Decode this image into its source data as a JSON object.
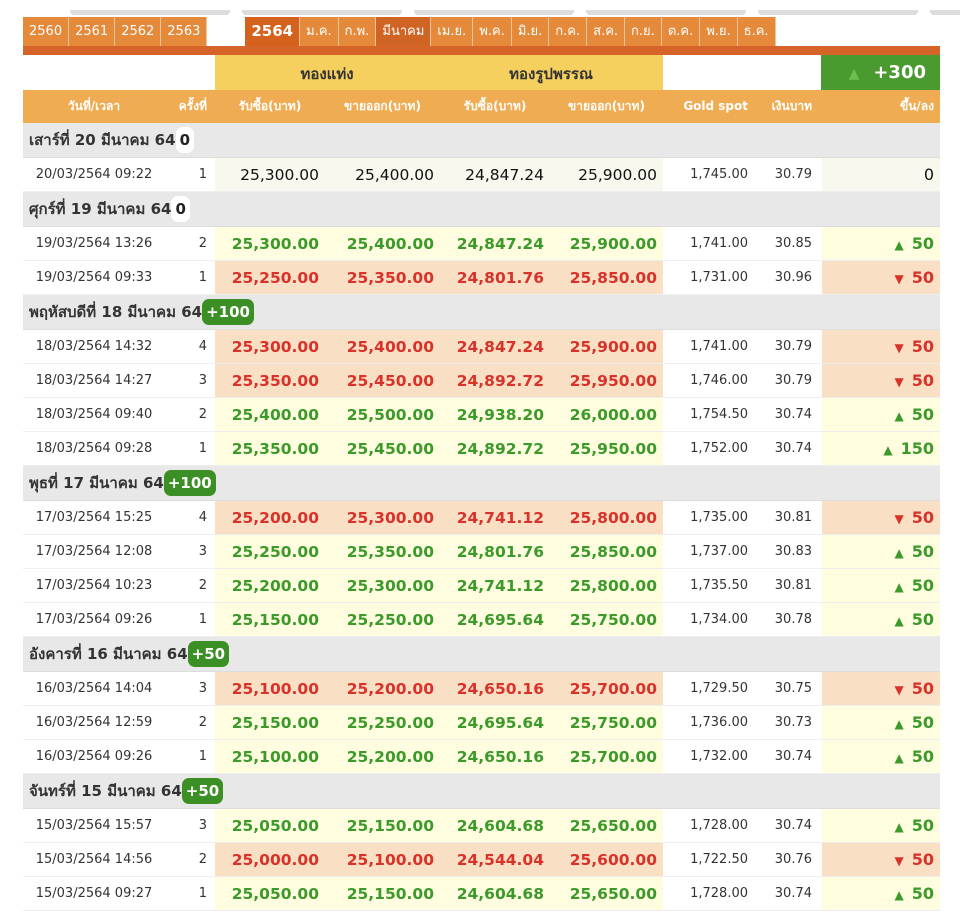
{
  "years": [
    "2560",
    "2561",
    "2562",
    "2563"
  ],
  "active_year": "2564",
  "months": [
    "ม.ค.",
    "ก.พ.",
    "มีนาคม",
    "เม.ย.",
    "พ.ค.",
    "มิ.ย.",
    "ก.ค.",
    "ส.ค.",
    "ก.ย.",
    "ต.ค.",
    "พ.ย.",
    "ธ.ค."
  ],
  "active_month_index": 2,
  "group_headers": {
    "bar": "ทองแท่ง",
    "ornament": "ทองรูปพรรณ",
    "total_change": "+300"
  },
  "columns": [
    "วันที่/เวลา",
    "ครั้งที่",
    "รับซื้อ(บาท)",
    "ขายออก(บาท)",
    "รับซื้อ(บาท)",
    "ขายออก(บาท)",
    "Gold spot",
    "เงินบาท",
    "ขึ้น/ลง"
  ],
  "colors": {
    "up": "#3c9a2a",
    "down": "#d8322a",
    "accent": "#e58a3a"
  },
  "days": [
    {
      "label": "เสาร์ที่ 20 มีนาคม 64",
      "change": "0",
      "rows": [
        {
          "time": "20/03/2564 09:22",
          "n": "1",
          "bb": "25,300.00",
          "bs": "25,400.00",
          "ob": "24,847.24",
          "os": "25,900.00",
          "spot": "1,745.00",
          "thb": "30.79",
          "chg": "0",
          "dir": "flat"
        }
      ]
    },
    {
      "label": "ศุกร์ที่ 19 มีนาคม 64",
      "change": "0",
      "rows": [
        {
          "time": "19/03/2564 13:26",
          "n": "2",
          "bb": "25,300.00",
          "bs": "25,400.00",
          "ob": "24,847.24",
          "os": "25,900.00",
          "spot": "1,741.00",
          "thb": "30.85",
          "chg": "50",
          "dir": "up"
        },
        {
          "time": "19/03/2564 09:33",
          "n": "1",
          "bb": "25,250.00",
          "bs": "25,350.00",
          "ob": "24,801.76",
          "os": "25,850.00",
          "spot": "1,731.00",
          "thb": "30.96",
          "chg": "50",
          "dir": "down"
        }
      ]
    },
    {
      "label": "พฤหัสบดีที่ 18 มีนาคม 64",
      "change": "+100",
      "rows": [
        {
          "time": "18/03/2564 14:32",
          "n": "4",
          "bb": "25,300.00",
          "bs": "25,400.00",
          "ob": "24,847.24",
          "os": "25,900.00",
          "spot": "1,741.00",
          "thb": "30.79",
          "chg": "50",
          "dir": "down"
        },
        {
          "time": "18/03/2564 14:27",
          "n": "3",
          "bb": "25,350.00",
          "bs": "25,450.00",
          "ob": "24,892.72",
          "os": "25,950.00",
          "spot": "1,746.00",
          "thb": "30.79",
          "chg": "50",
          "dir": "down"
        },
        {
          "time": "18/03/2564 09:40",
          "n": "2",
          "bb": "25,400.00",
          "bs": "25,500.00",
          "ob": "24,938.20",
          "os": "26,000.00",
          "spot": "1,754.50",
          "thb": "30.74",
          "chg": "50",
          "dir": "up"
        },
        {
          "time": "18/03/2564 09:28",
          "n": "1",
          "bb": "25,350.00",
          "bs": "25,450.00",
          "ob": "24,892.72",
          "os": "25,950.00",
          "spot": "1,752.00",
          "thb": "30.74",
          "chg": "150",
          "dir": "up"
        }
      ]
    },
    {
      "label": "พุธที่ 17 มีนาคม 64",
      "change": "+100",
      "rows": [
        {
          "time": "17/03/2564 15:25",
          "n": "4",
          "bb": "25,200.00",
          "bs": "25,300.00",
          "ob": "24,741.12",
          "os": "25,800.00",
          "spot": "1,735.00",
          "thb": "30.81",
          "chg": "50",
          "dir": "down"
        },
        {
          "time": "17/03/2564 12:08",
          "n": "3",
          "bb": "25,250.00",
          "bs": "25,350.00",
          "ob": "24,801.76",
          "os": "25,850.00",
          "spot": "1,737.00",
          "thb": "30.83",
          "chg": "50",
          "dir": "up"
        },
        {
          "time": "17/03/2564 10:23",
          "n": "2",
          "bb": "25,200.00",
          "bs": "25,300.00",
          "ob": "24,741.12",
          "os": "25,800.00",
          "spot": "1,735.50",
          "thb": "30.81",
          "chg": "50",
          "dir": "up"
        },
        {
          "time": "17/03/2564 09:26",
          "n": "1",
          "bb": "25,150.00",
          "bs": "25,250.00",
          "ob": "24,695.64",
          "os": "25,750.00",
          "spot": "1,734.00",
          "thb": "30.78",
          "chg": "50",
          "dir": "up"
        }
      ]
    },
    {
      "label": "อังคารที่ 16 มีนาคม 64",
      "change": "+50",
      "rows": [
        {
          "time": "16/03/2564 14:04",
          "n": "3",
          "bb": "25,100.00",
          "bs": "25,200.00",
          "ob": "24,650.16",
          "os": "25,700.00",
          "spot": "1,729.50",
          "thb": "30.75",
          "chg": "50",
          "dir": "down"
        },
        {
          "time": "16/03/2564 12:59",
          "n": "2",
          "bb": "25,150.00",
          "bs": "25,250.00",
          "ob": "24,695.64",
          "os": "25,750.00",
          "spot": "1,736.00",
          "thb": "30.73",
          "chg": "50",
          "dir": "up"
        },
        {
          "time": "16/03/2564 09:26",
          "n": "1",
          "bb": "25,100.00",
          "bs": "25,200.00",
          "ob": "24,650.16",
          "os": "25,700.00",
          "spot": "1,732.00",
          "thb": "30.74",
          "chg": "50",
          "dir": "up"
        }
      ]
    },
    {
      "label": "จันทร์ที่ 15 มีนาคม 64",
      "change": "+50",
      "rows": [
        {
          "time": "15/03/2564 15:57",
          "n": "3",
          "bb": "25,050.00",
          "bs": "25,150.00",
          "ob": "24,604.68",
          "os": "25,650.00",
          "spot": "1,728.00",
          "thb": "30.74",
          "chg": "50",
          "dir": "up"
        },
        {
          "time": "15/03/2564 14:56",
          "n": "2",
          "bb": "25,000.00",
          "bs": "25,100.00",
          "ob": "24,544.04",
          "os": "25,600.00",
          "spot": "1,722.50",
          "thb": "30.76",
          "chg": "50",
          "dir": "down"
        },
        {
          "time": "15/03/2564 09:27",
          "n": "1",
          "bb": "25,050.00",
          "bs": "25,150.00",
          "ob": "24,604.68",
          "os": "25,650.00",
          "spot": "1,728.00",
          "thb": "30.74",
          "chg": "50",
          "dir": "up"
        }
      ]
    }
  ]
}
